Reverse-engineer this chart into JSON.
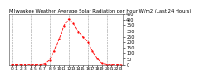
{
  "title": "Milwaukee Weather Average Solar Radiation per Hour W/m2 (Last 24 Hours)",
  "x_hours": [
    0,
    1,
    2,
    3,
    4,
    5,
    6,
    7,
    8,
    9,
    10,
    11,
    12,
    13,
    14,
    15,
    16,
    17,
    18,
    19,
    20,
    21,
    22,
    23
  ],
  "y_values": [
    0,
    0,
    0,
    0,
    0,
    0,
    0,
    5,
    40,
    120,
    230,
    340,
    410,
    370,
    290,
    250,
    200,
    120,
    50,
    10,
    0,
    0,
    0,
    0
  ],
  "line_color": "#ff0000",
  "bg_color": "#ffffff",
  "grid_color": "#999999",
  "ylim": [
    0,
    450
  ],
  "yticks": [
    0,
    50,
    100,
    150,
    200,
    250,
    300,
    350,
    400,
    450
  ],
  "grid_xticks": [
    0,
    4,
    8,
    12,
    16,
    20
  ],
  "ylabel_fontsize": 3.5,
  "xlabel_fontsize": 3.2,
  "title_fontsize": 3.8,
  "line_width": 0.6,
  "marker_size": 1.2
}
